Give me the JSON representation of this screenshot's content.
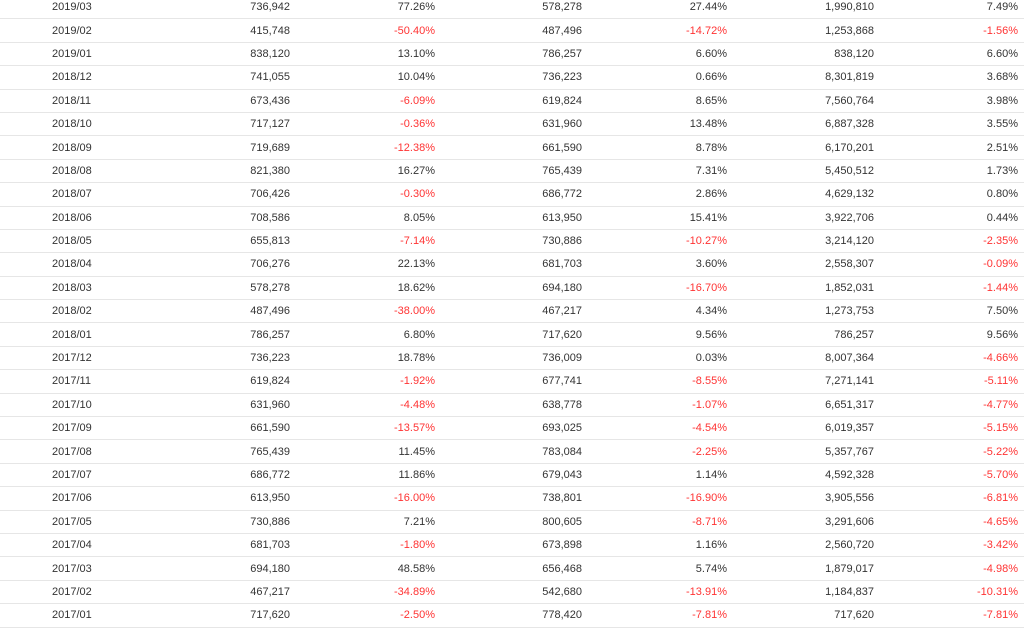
{
  "colors": {
    "text": "#333333",
    "negative": "#ff3333",
    "row_border": "#e6e6e6",
    "background": "#ffffff"
  },
  "rows": [
    [
      "2019/03",
      "736,942",
      "77.26%",
      "578,278",
      "27.44%",
      "1,990,810",
      "7.49%"
    ],
    [
      "2019/02",
      "415,748",
      "-50.40%",
      "487,496",
      "-14.72%",
      "1,253,868",
      "-1.56%"
    ],
    [
      "2019/01",
      "838,120",
      "13.10%",
      "786,257",
      "6.60%",
      "838,120",
      "6.60%"
    ],
    [
      "2018/12",
      "741,055",
      "10.04%",
      "736,223",
      "0.66%",
      "8,301,819",
      "3.68%"
    ],
    [
      "2018/11",
      "673,436",
      "-6.09%",
      "619,824",
      "8.65%",
      "7,560,764",
      "3.98%"
    ],
    [
      "2018/10",
      "717,127",
      "-0.36%",
      "631,960",
      "13.48%",
      "6,887,328",
      "3.55%"
    ],
    [
      "2018/09",
      "719,689",
      "-12.38%",
      "661,590",
      "8.78%",
      "6,170,201",
      "2.51%"
    ],
    [
      "2018/08",
      "821,380",
      "16.27%",
      "765,439",
      "7.31%",
      "5,450,512",
      "1.73%"
    ],
    [
      "2018/07",
      "706,426",
      "-0.30%",
      "686,772",
      "2.86%",
      "4,629,132",
      "0.80%"
    ],
    [
      "2018/06",
      "708,586",
      "8.05%",
      "613,950",
      "15.41%",
      "3,922,706",
      "0.44%"
    ],
    [
      "2018/05",
      "655,813",
      "-7.14%",
      "730,886",
      "-10.27%",
      "3,214,120",
      "-2.35%"
    ],
    [
      "2018/04",
      "706,276",
      "22.13%",
      "681,703",
      "3.60%",
      "2,558,307",
      "-0.09%"
    ],
    [
      "2018/03",
      "578,278",
      "18.62%",
      "694,180",
      "-16.70%",
      "1,852,031",
      "-1.44%"
    ],
    [
      "2018/02",
      "487,496",
      "-38.00%",
      "467,217",
      "4.34%",
      "1,273,753",
      "7.50%"
    ],
    [
      "2018/01",
      "786,257",
      "6.80%",
      "717,620",
      "9.56%",
      "786,257",
      "9.56%"
    ],
    [
      "2017/12",
      "736,223",
      "18.78%",
      "736,009",
      "0.03%",
      "8,007,364",
      "-4.66%"
    ],
    [
      "2017/11",
      "619,824",
      "-1.92%",
      "677,741",
      "-8.55%",
      "7,271,141",
      "-5.11%"
    ],
    [
      "2017/10",
      "631,960",
      "-4.48%",
      "638,778",
      "-1.07%",
      "6,651,317",
      "-4.77%"
    ],
    [
      "2017/09",
      "661,590",
      "-13.57%",
      "693,025",
      "-4.54%",
      "6,019,357",
      "-5.15%"
    ],
    [
      "2017/08",
      "765,439",
      "11.45%",
      "783,084",
      "-2.25%",
      "5,357,767",
      "-5.22%"
    ],
    [
      "2017/07",
      "686,772",
      "11.86%",
      "679,043",
      "1.14%",
      "4,592,328",
      "-5.70%"
    ],
    [
      "2017/06",
      "613,950",
      "-16.00%",
      "738,801",
      "-16.90%",
      "3,905,556",
      "-6.81%"
    ],
    [
      "2017/05",
      "730,886",
      "7.21%",
      "800,605",
      "-8.71%",
      "3,291,606",
      "-4.65%"
    ],
    [
      "2017/04",
      "681,703",
      "-1.80%",
      "673,898",
      "1.16%",
      "2,560,720",
      "-3.42%"
    ],
    [
      "2017/03",
      "694,180",
      "48.58%",
      "656,468",
      "5.74%",
      "1,879,017",
      "-4.98%"
    ],
    [
      "2017/02",
      "467,217",
      "-34.89%",
      "542,680",
      "-13.91%",
      "1,184,837",
      "-10.31%"
    ],
    [
      "2017/01",
      "717,620",
      "-2.50%",
      "778,420",
      "-7.81%",
      "717,620",
      "-7.81%"
    ]
  ]
}
